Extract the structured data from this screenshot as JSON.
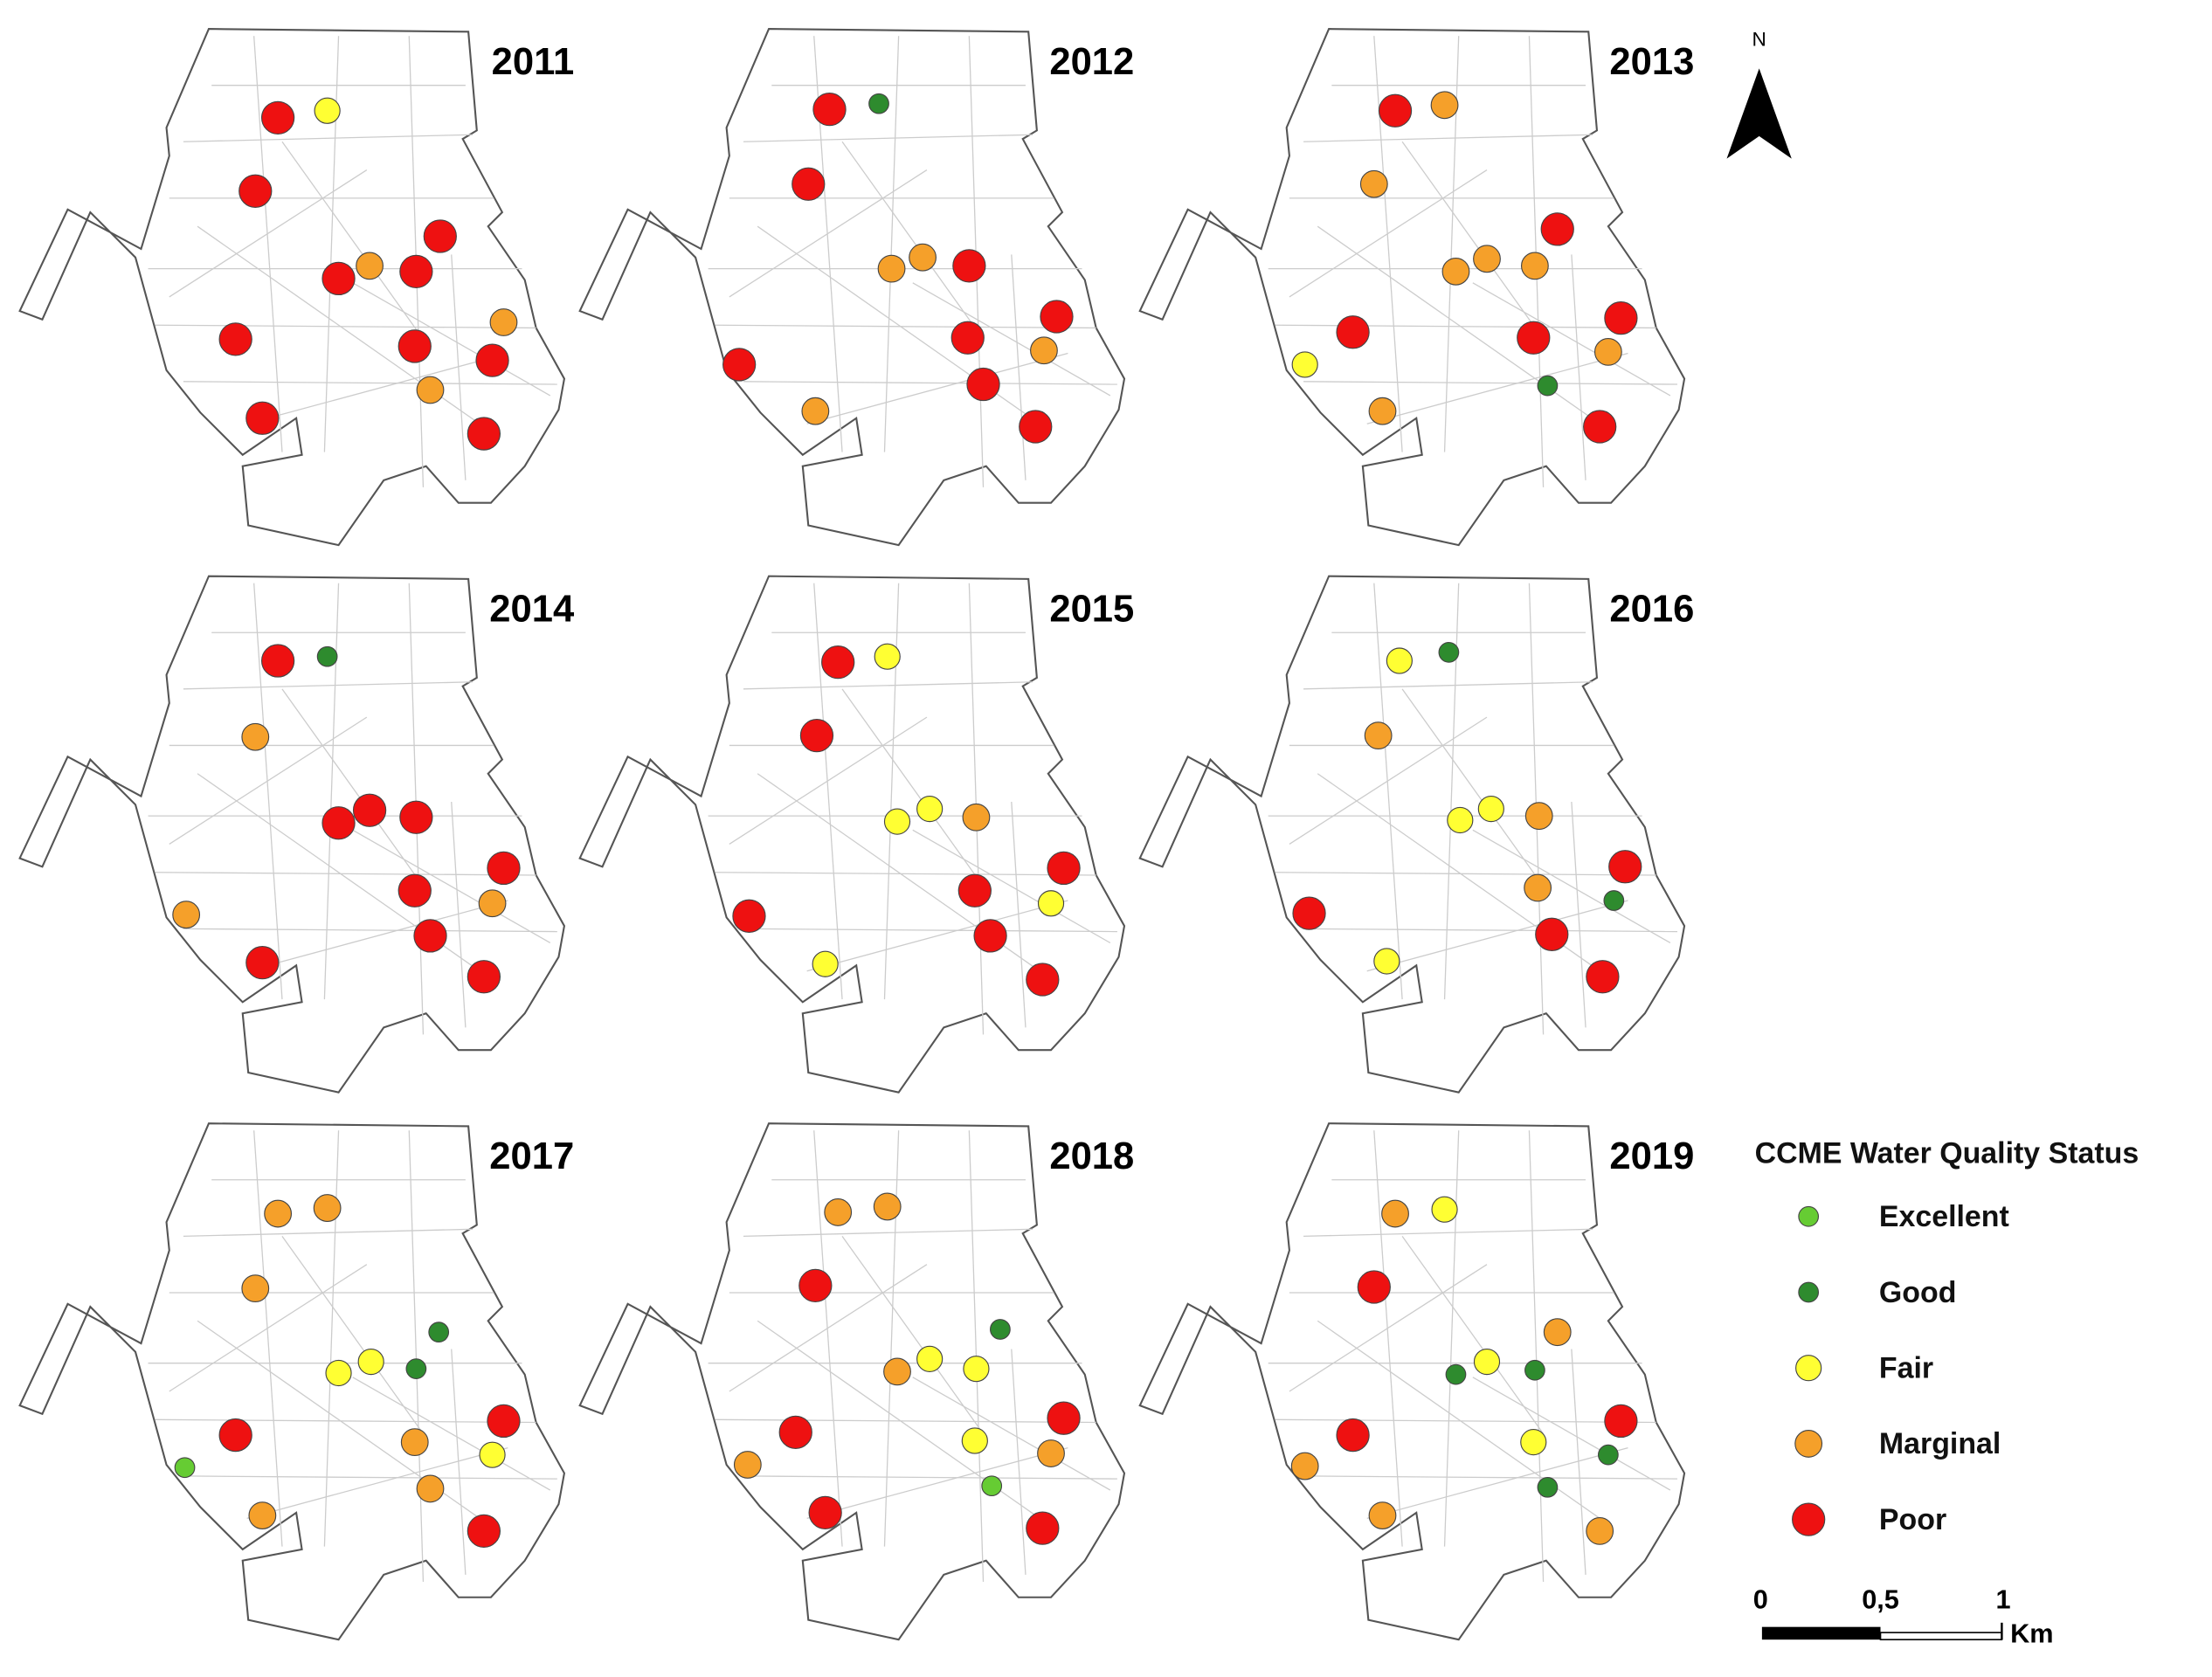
{
  "maps": [
    {
      "year": "2011",
      "stations": [
        "Poor",
        "Fair",
        "Poor",
        "Poor",
        "Poor",
        "Marginal",
        "Poor",
        "Marginal",
        "Poor",
        "Poor",
        "Poor",
        "Marginal",
        "Poor",
        "Poor"
      ]
    },
    {
      "year": "2012",
      "stations": [
        "Poor",
        "Good",
        "Poor",
        "Marginal",
        "Marginal",
        "Poor",
        "Poor",
        "Poor",
        "Marginal",
        "Poor",
        "Poor",
        "Marginal",
        "Poor"
      ]
    },
    {
      "year": "2013",
      "stations": [
        "Poor",
        "Marginal",
        "Marginal",
        "Poor",
        "Marginal",
        "Marginal",
        "Marginal",
        "Poor",
        "Poor",
        "Poor",
        "Marginal",
        "Fair",
        "Good",
        "Marginal",
        "Poor"
      ]
    },
    {
      "year": "2014",
      "stations": [
        "Poor",
        "Good",
        "Marginal",
        "Poor",
        "Poor",
        "Poor",
        "Poor",
        "Poor",
        "Marginal",
        "Poor",
        "Marginal",
        "Poor",
        "Poor"
      ]
    },
    {
      "year": "2015",
      "stations": [
        "Poor",
        "Fair",
        "Poor",
        "Fair",
        "Fair",
        "Marginal",
        "Poor",
        "Poor",
        "Fair",
        "Poor",
        "Poor",
        "Fair",
        "Poor"
      ]
    },
    {
      "year": "2016",
      "stations": [
        "Fair",
        "Good",
        "Marginal",
        "Fair",
        "Fair",
        "Marginal",
        "Poor",
        "Marginal",
        "Good",
        "Poor",
        "Poor",
        "Fair",
        "Poor"
      ]
    },
    {
      "year": "2017",
      "stations": [
        "Marginal",
        "Marginal",
        "Marginal",
        "Good",
        "Fair",
        "Fair",
        "Good",
        "Poor",
        "Poor",
        "Marginal",
        "Fair",
        "Marginal",
        "Excellent",
        "Marginal",
        "Poor"
      ]
    },
    {
      "year": "2018",
      "stations": [
        "Marginal",
        "Marginal",
        "Poor",
        "Good",
        "Marginal",
        "Fair",
        "Fair",
        "Poor",
        "Poor",
        "Fair",
        "Marginal",
        "Excellent",
        "Marginal",
        "Poor",
        "Poor"
      ]
    },
    {
      "year": "2019",
      "stations": [
        "Marginal",
        "Fair",
        "Poor",
        "Marginal",
        "Good",
        "Fair",
        "Good",
        "Poor",
        "Poor",
        "Fair",
        "Good",
        "Good",
        "Marginal",
        "Marginal",
        "Marginal"
      ]
    }
  ],
  "legend": {
    "title": "CCME Water Quality Status",
    "items": [
      {
        "label": "Excellent",
        "color": "#66cc33"
      },
      {
        "label": "Good",
        "color": "#2e8b2e"
      },
      {
        "label": "Fair",
        "color": "#ffff33"
      },
      {
        "label": "Marginal",
        "color": "#f5a02a"
      },
      {
        "label": "Poor",
        "color": "#ee1111"
      }
    ]
  },
  "north_arrow": "N",
  "scale_bar": {
    "labels": [
      "0",
      "0,5",
      "1"
    ],
    "unit": "Km"
  }
}
